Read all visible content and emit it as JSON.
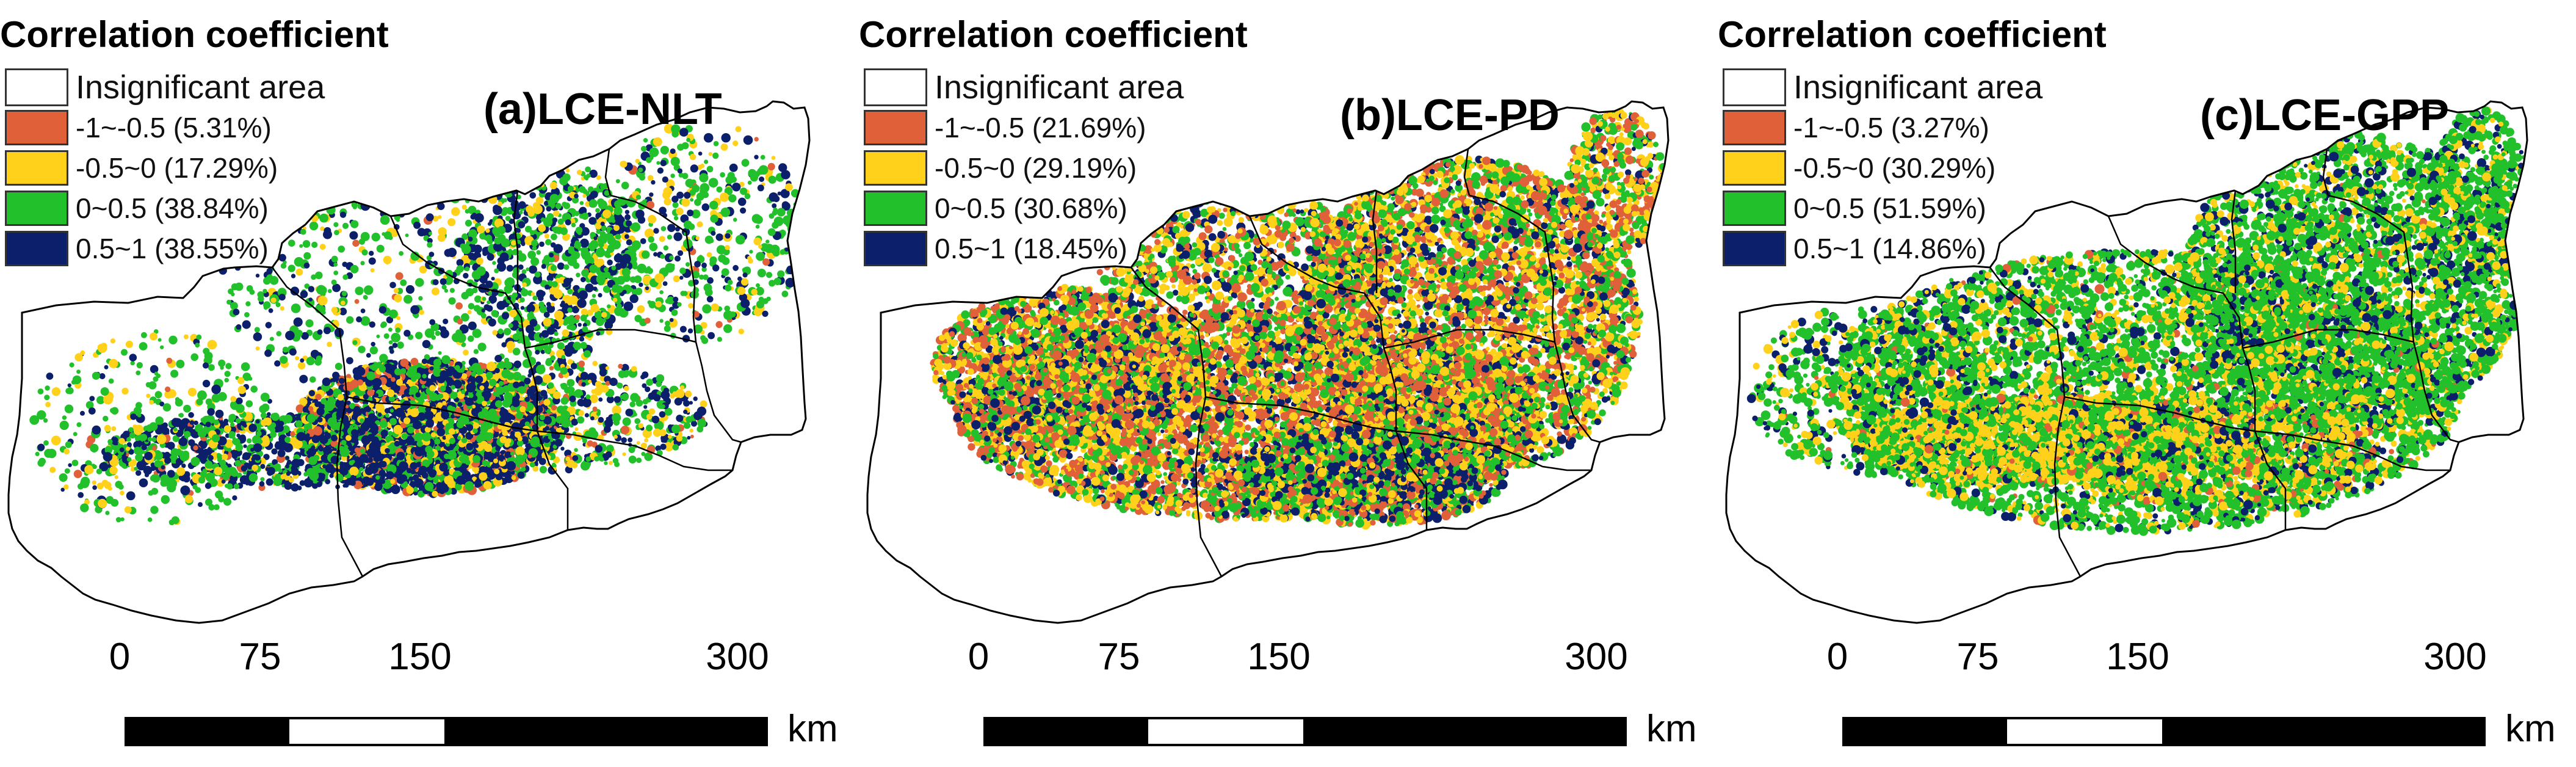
{
  "panels": [
    {
      "label": "(a)LCE-NLT",
      "legend_title": "Correlation coefficient",
      "legend": [
        {
          "label": "Insignificant area",
          "color": "#ffffff"
        },
        {
          "label": "-1~-0.5 (5.31%)",
          "color": "#e0603a"
        },
        {
          "label": "-0.5~0 (17.29%)",
          "color": "#ffd11a"
        },
        {
          "label": "0~0.5 (38.84%)",
          "color": "#22c02a"
        },
        {
          "label": "0.5~1 (38.55%)",
          "color": "#0c1f6b"
        }
      ],
      "scale": {
        "ticks": [
          "0",
          "75",
          "150",
          "300"
        ],
        "unit": "km"
      }
    },
    {
      "label": "(b)LCE-PD",
      "legend_title": "Correlation coefficient",
      "legend": [
        {
          "label": "Insignificant area",
          "color": "#ffffff"
        },
        {
          "label": "-1~-0.5 (21.69%)",
          "color": "#e0603a"
        },
        {
          "label": "-0.5~0 (29.19%)",
          "color": "#ffd11a"
        },
        {
          "label": "0~0.5 (30.68%)",
          "color": "#22c02a"
        },
        {
          "label": "0.5~1 (18.45%)",
          "color": "#0c1f6b"
        }
      ],
      "scale": {
        "ticks": [
          "0",
          "75",
          "150",
          "300"
        ],
        "unit": "km"
      }
    },
    {
      "label": "(c)LCE-GPP",
      "legend_title": "Correlation coefficient",
      "legend": [
        {
          "label": "Insignificant area",
          "color": "#ffffff"
        },
        {
          "label": "-1~-0.5 (3.27%)",
          "color": "#e0603a"
        },
        {
          "label": "-0.5~0 (30.29%)",
          "color": "#ffd11a"
        },
        {
          "label": "0~0.5 (51.59%)",
          "color": "#22c02a"
        },
        {
          "label": "0.5~1 (14.86%)",
          "color": "#0c1f6b"
        }
      ],
      "scale": {
        "ticks": [
          "0",
          "75",
          "150",
          "300"
        ],
        "unit": "km"
      }
    }
  ]
}
